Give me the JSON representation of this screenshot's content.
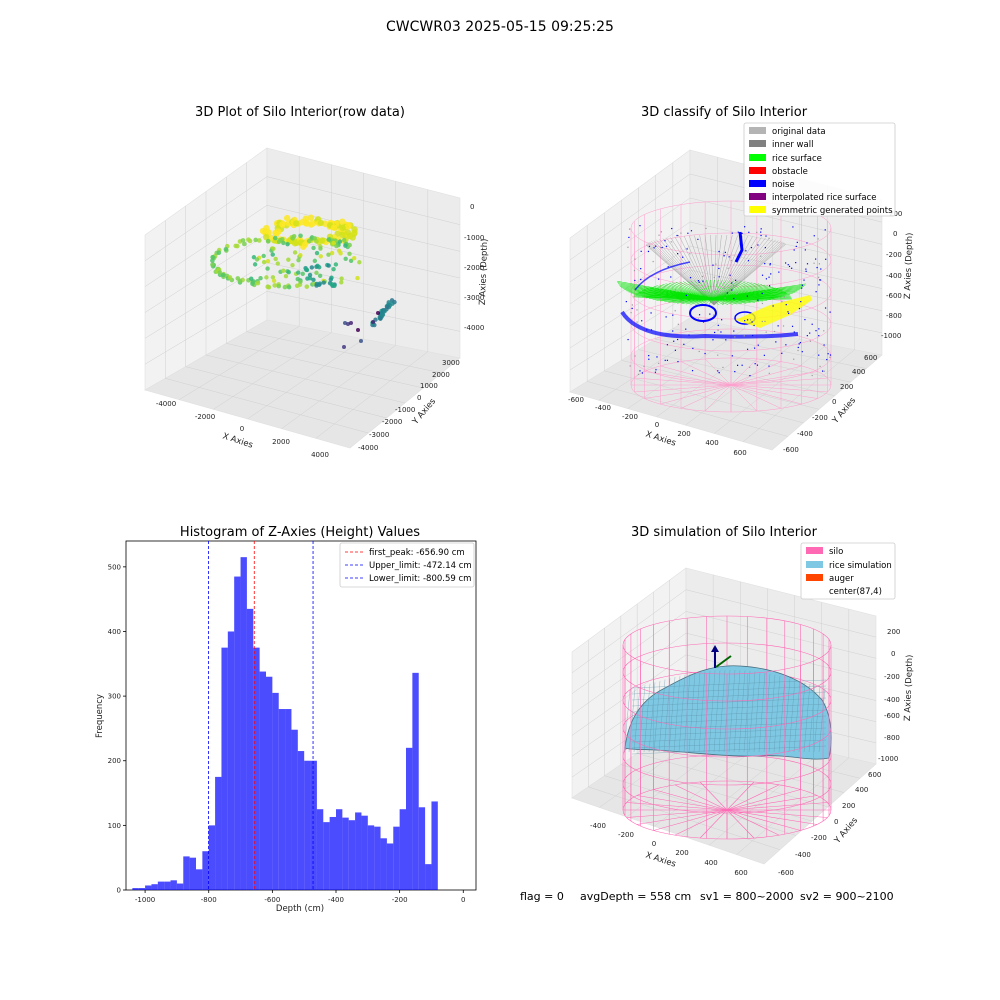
{
  "figure_title": "CWCWR03 2025-05-15 09:25:25",
  "status_line": {
    "flag": "flag = 0",
    "avg_depth": "avgDepth = 558 cm",
    "sv1": "sv1 = 800~2000",
    "sv2": "sv2 = 900~2100"
  },
  "chart_data": [
    {
      "type": "scatter",
      "projection": "3d",
      "title": "3D Plot of Silo Interior(row data)",
      "xlabel": "X Axies",
      "ylabel": "Y Axies",
      "zlabel": "Z Axies (Depth)",
      "x_ticks": [
        "-4000",
        "-2000",
        "0",
        "2000",
        "4000"
      ],
      "y_ticks": [
        "-4000",
        "-3000",
        "-2000",
        "-1000",
        "0",
        "1000",
        "2000",
        "3000"
      ],
      "z_ticks": [
        "0",
        "-1000",
        "-2000",
        "-3000",
        "-4000"
      ],
      "xlim": [
        -4500,
        4500
      ],
      "ylim": [
        -4500,
        3500
      ],
      "zlim": [
        -4700,
        200
      ],
      "colormap": "viridis",
      "grid": true
    },
    {
      "type": "scatter",
      "projection": "3d",
      "title": "3D classify of Silo Interior",
      "x_ticks": [
        "-600",
        "-400",
        "-200",
        "0",
        "200",
        "400",
        "600"
      ],
      "y_ticks": [
        "-600",
        "-400",
        "-200",
        "0",
        "200",
        "400",
        "600"
      ],
      "z_ticks": [
        "200",
        "0",
        "-200",
        "-400",
        "-600",
        "-800",
        "-1000"
      ],
      "xlabel": "X Axies",
      "ylabel": "Y Axies",
      "zlabel": "Z Axies (Depth)",
      "legend_position": "top-right",
      "legend": [
        {
          "label": "original data",
          "color": "#b4b4b4"
        },
        {
          "label": "inner wall",
          "color": "#808080"
        },
        {
          "label": "rice surface",
          "color": "#00ff00"
        },
        {
          "label": "obstacle",
          "color": "#ff0000"
        },
        {
          "label": "noise",
          "color": "#0000ff"
        },
        {
          "label": "interpolated rice surface",
          "color": "#800080"
        },
        {
          "label": "symmetric generated points",
          "color": "#ffff00"
        }
      ],
      "grid": true
    },
    {
      "type": "bar",
      "title": "Histogram of Z-Axies (Height) Values",
      "xlabel": "Depth (cm)",
      "ylabel": "Frequency",
      "xlim": [
        -1060,
        40
      ],
      "ylim": [
        0,
        540
      ],
      "x_ticks": [
        -1000,
        -800,
        -600,
        -400,
        -200,
        0
      ],
      "y_ticks": [
        0,
        100,
        200,
        300,
        400,
        500
      ],
      "bin_start": -1040,
      "bin_width": 20,
      "values": [
        3,
        3,
        7,
        9,
        13,
        13,
        15,
        10,
        52,
        50,
        32,
        60,
        100,
        175,
        375,
        400,
        485,
        515,
        435,
        375,
        338,
        330,
        305,
        280,
        280,
        248,
        215,
        200,
        200,
        125,
        105,
        113,
        125,
        112,
        108,
        120,
        115,
        100,
        98,
        80,
        72,
        98,
        125,
        220,
        336,
        128,
        40,
        137
      ],
      "bar_color": "#0000ff",
      "vlines": [
        {
          "value": -656.9,
          "color": "#ff0000",
          "label": "first_peak: -656.90 cm"
        },
        {
          "value": -472.14,
          "color": "#0000ff",
          "label": "Upper_limit: -472.14 cm"
        },
        {
          "value": -800.59,
          "color": "#0000ff",
          "label": "Lower_limit: -800.59 cm"
        }
      ],
      "legend_position": "top-right",
      "grid": false
    },
    {
      "type": "surface",
      "projection": "3d",
      "title": "3D simulation of Silo Interior",
      "x_ticks": [
        "-400",
        "-200",
        "0",
        "200",
        "400",
        "600"
      ],
      "y_ticks": [
        "-600",
        "-400",
        "-200",
        "0",
        "200",
        "400",
        "600"
      ],
      "z_ticks": [
        "200",
        "0",
        "-200",
        "-400",
        "-600",
        "-800",
        "-1000"
      ],
      "xlabel": "X Axies",
      "ylabel": "Y Axies",
      "zlabel": "Z Axies (Depth)",
      "legend_position": "top-right",
      "legend": [
        {
          "label": "silo",
          "color": "#ff69b4"
        },
        {
          "label": "rice simulation",
          "color": "#7ec8e3"
        },
        {
          "label": "auger",
          "color": "#ff4500"
        },
        {
          "label": "center(87,4)",
          "color": "#ffffff"
        }
      ],
      "grid": true
    }
  ]
}
